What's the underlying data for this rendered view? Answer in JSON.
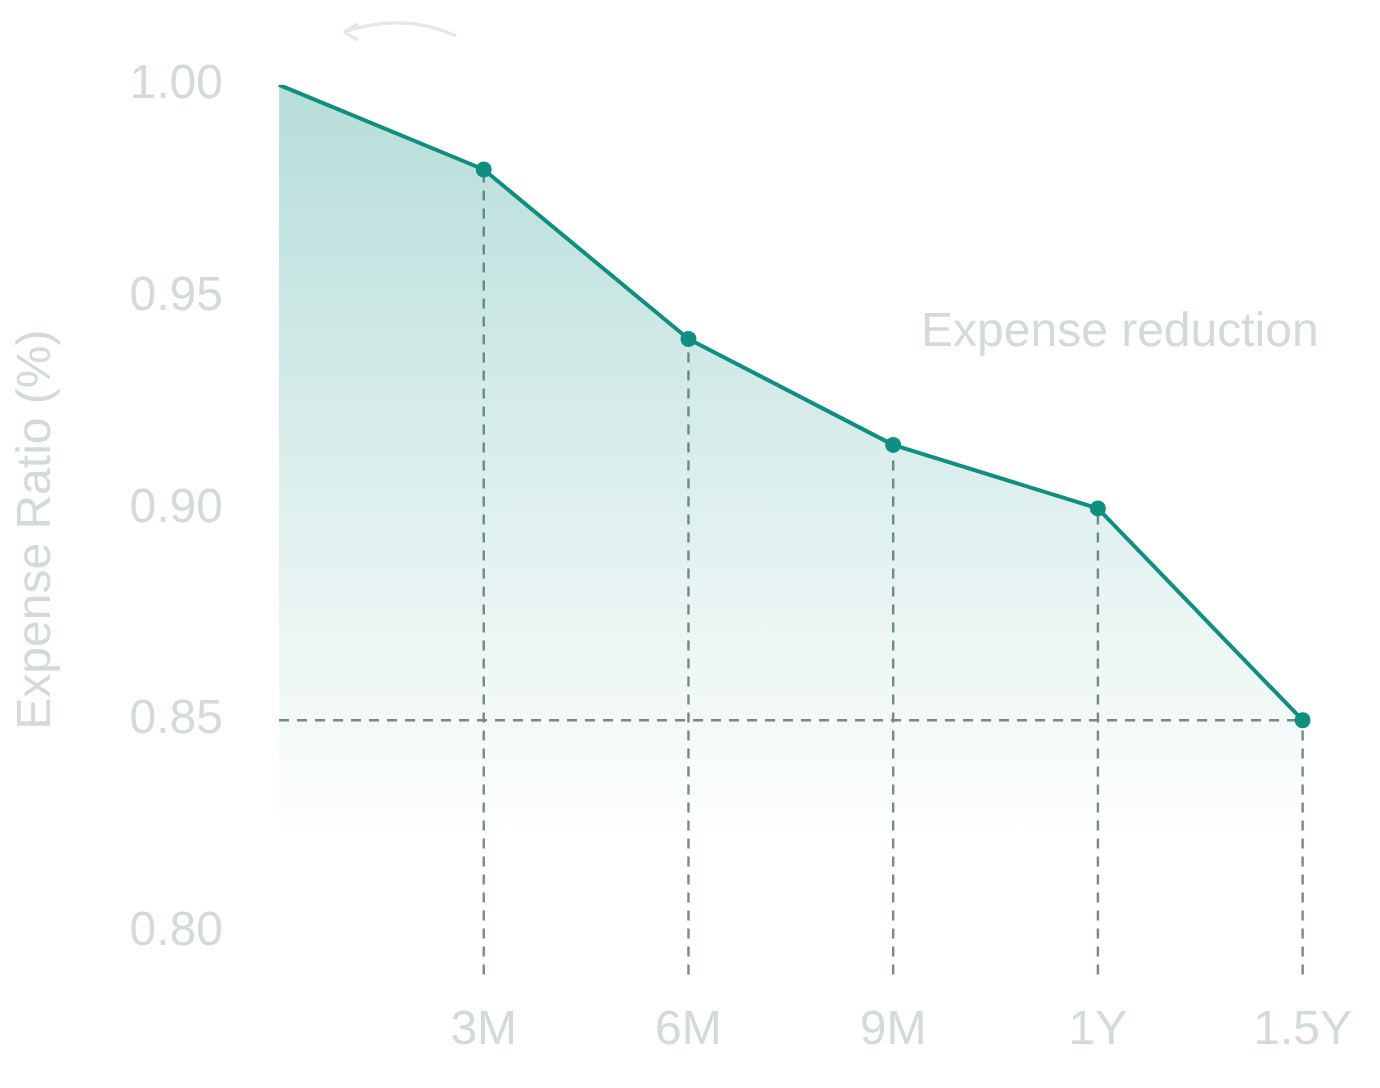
{
  "chart_data": {
    "type": "area",
    "ylabel": "Expense Ratio (%)",
    "annotations": [
      "Expense reduction"
    ],
    "categories": [
      null,
      "3M",
      "6M",
      "9M",
      "1Y",
      "1.5Y"
    ],
    "series": [
      {
        "color": "#0e8f80",
        "values": [
          1.0,
          0.98,
          0.94,
          0.915,
          0.9,
          0.85
        ]
      }
    ],
    "ylim": [
      0.79,
      1.0
    ],
    "yticks": [
      {
        "value": 0.8,
        "label": "0.80"
      },
      {
        "value": 0.85,
        "label": "0.85"
      },
      {
        "value": 0.9,
        "label": "0.90"
      },
      {
        "value": 0.95,
        "label": "0.95"
      },
      {
        "value": 1.0,
        "label": "1.00"
      }
    ],
    "ref_lines": [
      {
        "axis": "y",
        "value": 0.85,
        "line_style": "dashed",
        "color": "#7a8a86"
      },
      {
        "axis": "x",
        "value": "3M",
        "line_style": "dashed",
        "color": "#7a8a86"
      },
      {
        "axis": "x",
        "value": "6M",
        "line_style": "dashed",
        "color": "#7a8a86"
      },
      {
        "axis": "x",
        "value": "9M",
        "line_style": "dashed",
        "color": "#7a8a86"
      },
      {
        "axis": "x",
        "value": "1Y",
        "line_style": "dashed",
        "color": "#7a8a86"
      },
      {
        "axis": "x",
        "value": "1.5Y",
        "line_style": "dashed",
        "color": "#7a8a86"
      }
    ],
    "grid": false,
    "legend": false,
    "marker": "circle",
    "line_style": "solid"
  }
}
